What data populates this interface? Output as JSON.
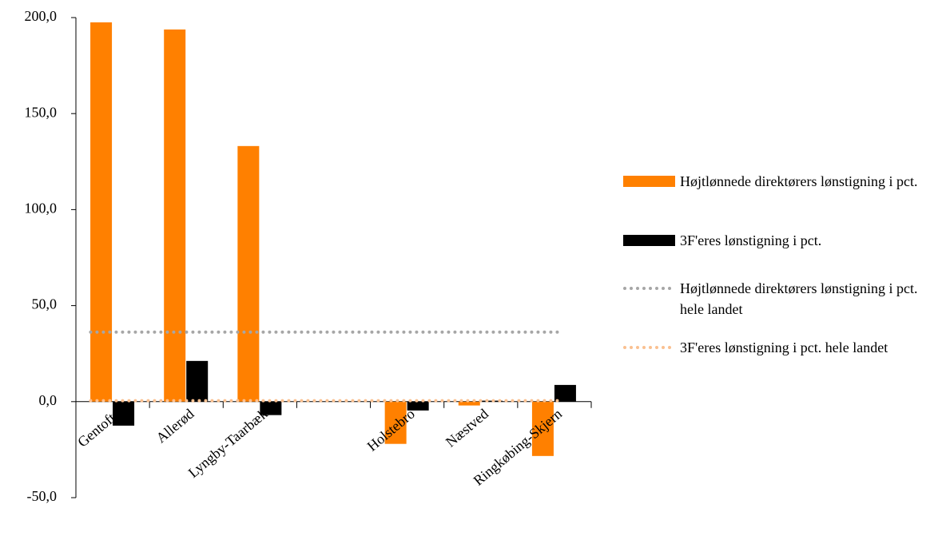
{
  "chart_data": {
    "type": "bar",
    "categories": [
      "Gentofte",
      "Allerød",
      "Lyngby-Taarbæk",
      null,
      "Holstebro",
      "Næstved",
      "Ringkøbing-Skjern"
    ],
    "series": [
      {
        "name": "Højtlønnede direktørers lønstigning i pct.",
        "color": "#ff8000",
        "values": [
          197.5,
          193.8,
          133.1,
          null,
          -22,
          -2,
          -28.3
        ]
      },
      {
        "name": "3F'eres lønstigning i pct.",
        "color": "#000000",
        "values": [
          -12.5,
          21.2,
          -7,
          null,
          -4.6,
          0.5,
          8.7
        ]
      }
    ],
    "reference_lines": [
      {
        "name": "Højtlønnede direktørers lønstigning i pct. hele landet",
        "color": "#a6a6a6",
        "value": 36.2
      },
      {
        "name": "3F'eres lønstigning i pct. hele landet",
        "color": "#fac090",
        "value": 0.5
      }
    ],
    "ylim": [
      -50,
      200
    ],
    "yticks": [
      {
        "value": -50,
        "label": "-50,0"
      },
      {
        "value": 0,
        "label": "0,0"
      },
      {
        "value": 50,
        "label": "50,0"
      },
      {
        "value": 100,
        "label": "100,0"
      },
      {
        "value": 150,
        "label": "150,0"
      },
      {
        "value": 200,
        "label": "200,0"
      }
    ]
  }
}
